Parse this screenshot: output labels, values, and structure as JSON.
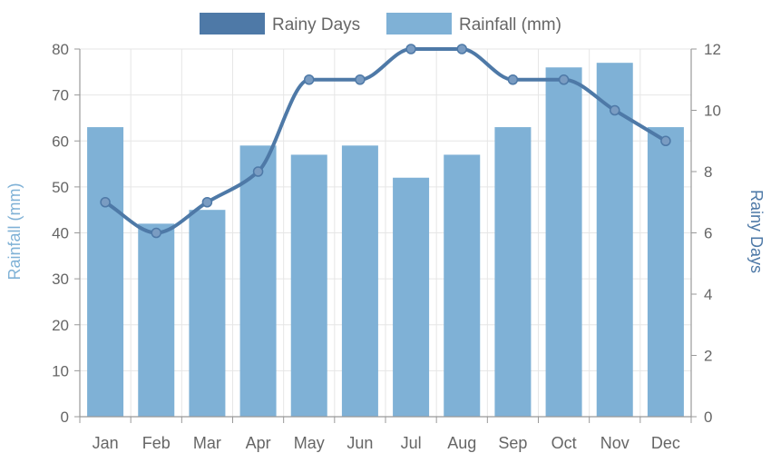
{
  "chart_data": {
    "type": "bar",
    "categories": [
      "Jan",
      "Feb",
      "Mar",
      "Apr",
      "May",
      "Jun",
      "Jul",
      "Aug",
      "Sep",
      "Oct",
      "Nov",
      "Dec"
    ],
    "series": [
      {
        "name": "Rainy Days",
        "kind": "line",
        "axis": "right",
        "color": "#4e79a7",
        "values": [
          7,
          6,
          7,
          8,
          11,
          11,
          12,
          12,
          11,
          11,
          10,
          9
        ]
      },
      {
        "name": "Rainfall (mm)",
        "kind": "bar",
        "axis": "left",
        "color": "#7fb1d6",
        "values": [
          63,
          42,
          45,
          59,
          57,
          59,
          52,
          57,
          63,
          76,
          77,
          63
        ]
      }
    ],
    "y_left": {
      "label": "Rainfall (mm)",
      "min": 0,
      "max": 80,
      "ticks": [
        0,
        10,
        20,
        30,
        40,
        50,
        60,
        70,
        80
      ],
      "color": "#7fb1d6"
    },
    "y_right": {
      "label": "Rainy Days",
      "min": 0,
      "max": 12,
      "ticks": [
        0,
        2,
        4,
        6,
        8,
        10,
        12
      ],
      "color": "#4e79a7"
    },
    "grid": true,
    "legend_position": "top-center"
  }
}
